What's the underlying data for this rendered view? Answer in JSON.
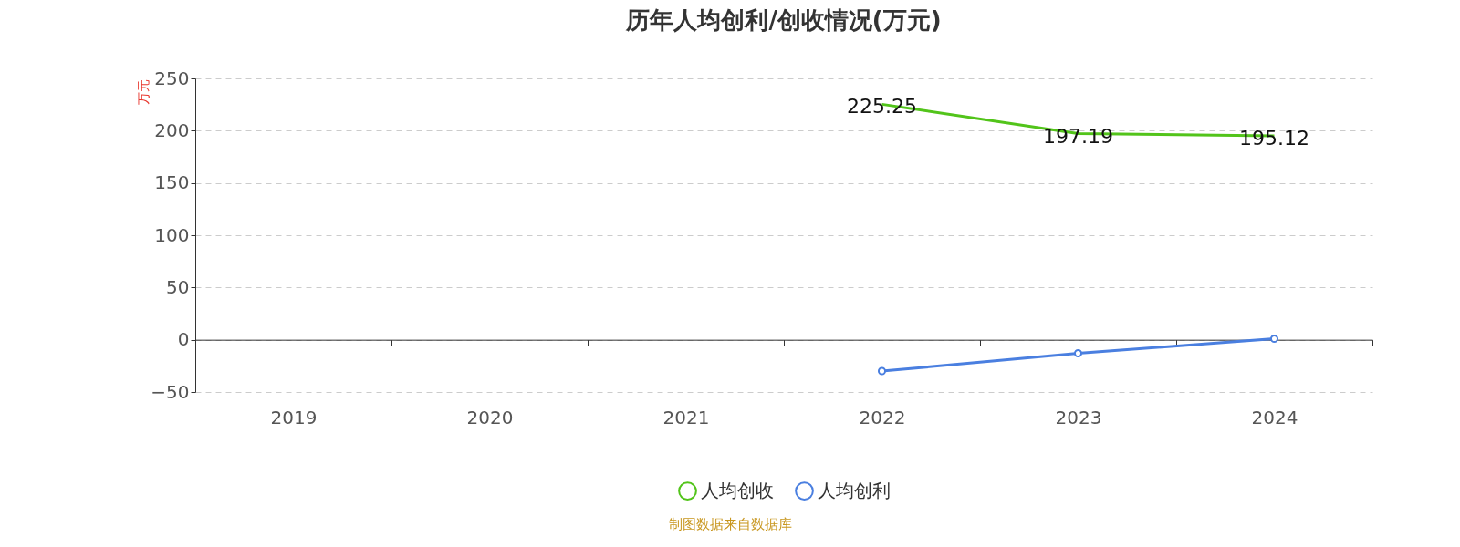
{
  "chart_data": {
    "type": "line",
    "title": "历年人均创利/创收情况(万元)",
    "ylabel": "万元",
    "categories": [
      "2019",
      "2020",
      "2021",
      "2022",
      "2023",
      "2024"
    ],
    "series": [
      {
        "name": "人均创收",
        "color": "#52c41a",
        "marker": "none",
        "values": [
          null,
          null,
          null,
          225.25,
          197.19,
          195.12
        ],
        "value_labels": [
          null,
          null,
          null,
          "225.25",
          "197.19",
          "195.12"
        ]
      },
      {
        "name": "人均创利",
        "color": "#4a7fe0",
        "values": [
          null,
          null,
          null,
          -30,
          -13,
          1
        ]
      }
    ],
    "ylim": [
      -50,
      250
    ],
    "yticks": [
      -50,
      0,
      50,
      100,
      150,
      200,
      250
    ],
    "grid": "y",
    "legend": "bottom",
    "marker": "circle",
    "line_style": "solid",
    "annotations": [
      "制图数据来自数据库"
    ]
  }
}
